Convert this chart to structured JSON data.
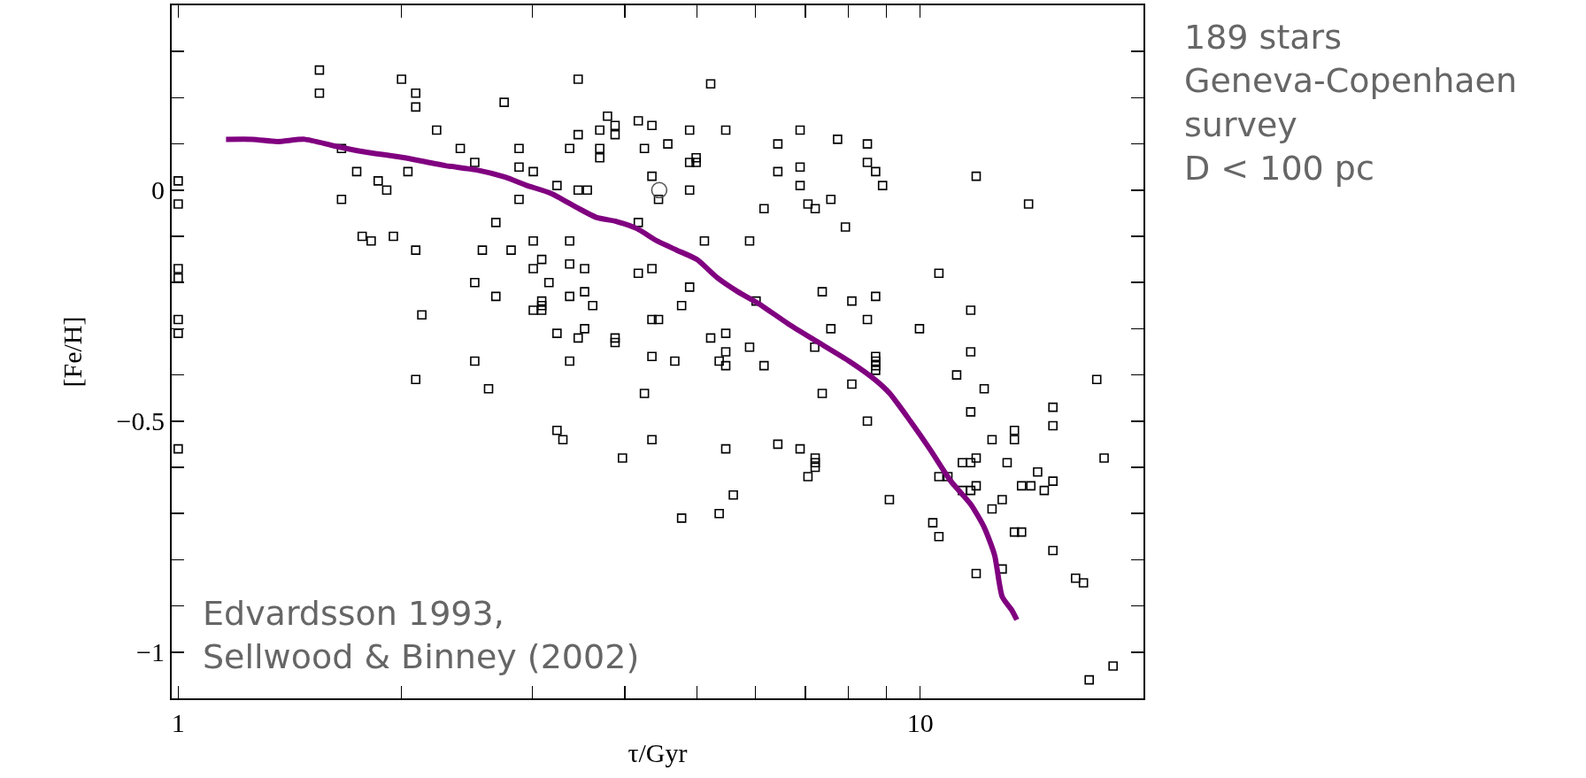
{
  "chart_data": {
    "type": "scatter",
    "xlabel": "τ/Gyr",
    "ylabel": "[Fe/H]",
    "log": "x",
    "xlim": [
      0.98,
      20
    ],
    "ylim": [
      -1.1,
      0.4
    ],
    "xticks": [
      1,
      {
        "value": 2,
        "label": null
      },
      {
        "value": 3,
        "label": null
      },
      {
        "value": 4,
        "label": null
      },
      {
        "value": 5,
        "label": null
      },
      {
        "value": 6,
        "label": null
      },
      {
        "value": 7,
        "label": null
      },
      {
        "value": 8,
        "label": null
      },
      {
        "value": 9,
        "label": null
      },
      10
    ],
    "yticks": [
      {
        "value": -1.1,
        "label": null
      },
      {
        "value": -1,
        "label": "−1"
      },
      {
        "value": -0.9,
        "label": null
      },
      {
        "value": -0.8,
        "label": null
      },
      {
        "value": -0.7,
        "label": null
      },
      {
        "value": -0.6,
        "label": null
      },
      {
        "value": -0.5,
        "label": "−0.5"
      },
      {
        "value": -0.4,
        "label": null
      },
      {
        "value": -0.3,
        "label": null
      },
      {
        "value": -0.2,
        "label": null
      },
      {
        "value": -0.1,
        "label": null
      },
      0,
      {
        "value": 0.1,
        "label": null
      },
      {
        "value": 0.2,
        "label": null
      },
      {
        "value": 0.3,
        "label": null
      }
    ],
    "annotations": [
      "Edvardsson 1993,\nSellwood & Binney (2002)",
      "189 stars\nGeneva-Copenhaen\nsurvey\nD < 100 pc"
    ],
    "series": [
      {
        "type": "scatter",
        "marker": "square",
        "color": "#000000",
        "x": [
          1.0,
          1.0,
          1.0,
          1.0,
          1.0,
          1.0,
          1.0,
          1.55,
          1.55,
          2.0,
          2.09,
          2.09,
          2.75,
          2.23,
          3.46,
          3.79,
          3.7,
          3.88,
          3.88,
          3.46,
          4.17,
          4.35,
          1.66,
          2.4,
          2.88,
          3.37,
          3.7,
          3.7,
          4.25,
          2.51,
          2.88,
          3.01,
          1.74,
          2.04,
          4.35,
          1.86,
          1.91,
          3.24,
          3.46,
          3.56,
          1.66,
          2.88,
          4.44,
          2.68,
          4.17,
          1.77,
          1.82,
          1.95,
          2.09,
          2.57,
          2.81,
          3.01,
          3.37,
          3.09,
          3.01,
          3.37,
          3.53,
          4.17,
          4.35,
          2.51,
          3.16,
          2.68,
          3.37,
          3.53,
          3.62,
          3.09,
          3.09,
          3.09,
          3.01,
          2.13,
          4.35,
          4.44,
          3.24,
          3.53,
          3.46,
          3.88,
          3.88,
          2.51,
          3.37,
          4.35,
          2.09,
          2.62,
          4.25,
          3.24,
          3.3,
          4.35,
          3.97,
          5.22,
          4.89,
          5.47,
          4.57,
          6.43,
          6.89,
          7.74,
          8.49,
          4.89,
          4.99,
          4.99,
          6.43,
          6.89,
          8.49,
          8.71,
          6.89,
          8.9,
          4.89,
          11.9,
          14.0,
          6.16,
          7.06,
          7.22,
          7.58,
          7.93,
          5.12,
          5.89,
          4.89,
          4.77,
          6.01,
          7.38,
          8.09,
          8.71,
          10.6,
          8.49,
          11.7,
          9.98,
          7.58,
          5.22,
          5.47,
          5.89,
          7.21,
          11.7,
          4.67,
          5.36,
          5.47,
          5.47,
          6.16,
          8.71,
          8.71,
          8.71,
          8.71,
          11.2,
          12.2,
          17.3,
          7.38,
          8.09,
          11.7,
          15.1,
          15.1,
          8.49,
          13.4,
          13.4,
          12.5,
          5.47,
          6.43,
          6.89,
          7.22,
          7.22,
          7.22,
          7.06,
          17.7,
          11.4,
          11.7,
          11.9,
          13.1,
          10.6,
          10.9,
          14.4,
          15.1,
          13.7,
          14.1,
          14.7,
          11.4,
          11.7,
          11.9,
          12.9,
          12.5,
          9.09,
          5.6,
          4.77,
          5.36,
          10.4,
          10.6,
          13.4,
          13.7,
          15.1,
          11.9,
          12.9,
          16.2,
          16.6,
          18.2,
          16.9
        ],
        "values": [
          0.02,
          -0.03,
          -0.17,
          -0.19,
          -0.28,
          -0.31,
          -0.56,
          0.26,
          0.21,
          0.24,
          0.21,
          0.18,
          0.19,
          0.13,
          0.24,
          0.16,
          0.13,
          0.14,
          0.12,
          0.12,
          0.15,
          0.14,
          0.09,
          0.09,
          0.09,
          0.09,
          0.09,
          0.07,
          0.09,
          0.06,
          0.05,
          0.04,
          0.04,
          0.04,
          0.03,
          0.02,
          0.0,
          0.01,
          0.0,
          0.0,
          -0.02,
          -0.02,
          -0.02,
          -0.07,
          -0.07,
          -0.1,
          -0.11,
          -0.1,
          -0.13,
          -0.13,
          -0.13,
          -0.11,
          -0.11,
          -0.15,
          -0.17,
          -0.16,
          -0.17,
          -0.18,
          -0.17,
          -0.2,
          -0.2,
          -0.23,
          -0.23,
          -0.22,
          -0.25,
          -0.24,
          -0.25,
          -0.26,
          -0.26,
          -0.27,
          -0.28,
          -0.28,
          -0.31,
          -0.3,
          -0.32,
          -0.32,
          -0.33,
          -0.37,
          -0.37,
          -0.36,
          -0.41,
          -0.43,
          -0.44,
          -0.52,
          -0.54,
          -0.54,
          -0.58,
          0.23,
          0.13,
          0.13,
          0.1,
          0.1,
          0.13,
          0.11,
          0.1,
          0.06,
          0.07,
          0.06,
          0.04,
          0.05,
          0.06,
          0.04,
          0.01,
          0.01,
          0.0,
          0.03,
          -0.03,
          -0.04,
          -0.03,
          -0.04,
          -0.02,
          -0.08,
          -0.11,
          -0.11,
          -0.21,
          -0.25,
          -0.24,
          -0.22,
          -0.24,
          -0.23,
          -0.18,
          -0.28,
          -0.26,
          -0.3,
          -0.3,
          -0.32,
          -0.31,
          -0.34,
          -0.34,
          -0.35,
          -0.37,
          -0.37,
          -0.35,
          -0.38,
          -0.38,
          -0.36,
          -0.37,
          -0.38,
          -0.39,
          -0.4,
          -0.43,
          -0.41,
          -0.44,
          -0.42,
          -0.48,
          -0.47,
          -0.51,
          -0.5,
          -0.52,
          -0.54,
          -0.54,
          -0.56,
          -0.55,
          -0.56,
          -0.58,
          -0.59,
          -0.6,
          -0.62,
          -0.58,
          -0.59,
          -0.59,
          -0.58,
          -0.59,
          -0.62,
          -0.62,
          -0.61,
          -0.63,
          -0.64,
          -0.64,
          -0.65,
          -0.65,
          -0.65,
          -0.64,
          -0.67,
          -0.69,
          -0.67,
          -0.66,
          -0.71,
          -0.7,
          -0.72,
          -0.75,
          -0.74,
          -0.74,
          -0.78,
          -0.83,
          -0.82,
          -0.84,
          -0.85,
          -1.03,
          -1.06
        ]
      },
      {
        "type": "scatter",
        "marker": "circle",
        "color": "#555555",
        "x": [
          4.45
        ],
        "values": [
          0.0
        ]
      },
      {
        "type": "line",
        "marker": "none",
        "line_style": "solid",
        "color": "#800080",
        "x": [
          1.16,
          1.26,
          1.36,
          1.48,
          1.62,
          1.78,
          2.02,
          2.29,
          2.52,
          2.76,
          2.94,
          3.18,
          3.44,
          3.66,
          3.9,
          4.15,
          4.42,
          4.7,
          5.0,
          5.33,
          5.68,
          6.05,
          6.65,
          7.3,
          8.02,
          8.69,
          9.1,
          9.7,
          10.3,
          11.0,
          11.7,
          12.2,
          12.6,
          12.9,
          13.3,
          13.5
        ],
        "values": [
          0.11,
          0.11,
          0.105,
          0.11,
          0.096,
          0.083,
          0.07,
          0.053,
          0.044,
          0.028,
          0.011,
          -0.007,
          -0.037,
          -0.059,
          -0.068,
          -0.083,
          -0.11,
          -0.13,
          -0.15,
          -0.19,
          -0.22,
          -0.245,
          -0.29,
          -0.33,
          -0.37,
          -0.41,
          -0.44,
          -0.5,
          -0.56,
          -0.63,
          -0.68,
          -0.73,
          -0.79,
          -0.88,
          -0.91,
          -0.93
        ]
      }
    ]
  }
}
